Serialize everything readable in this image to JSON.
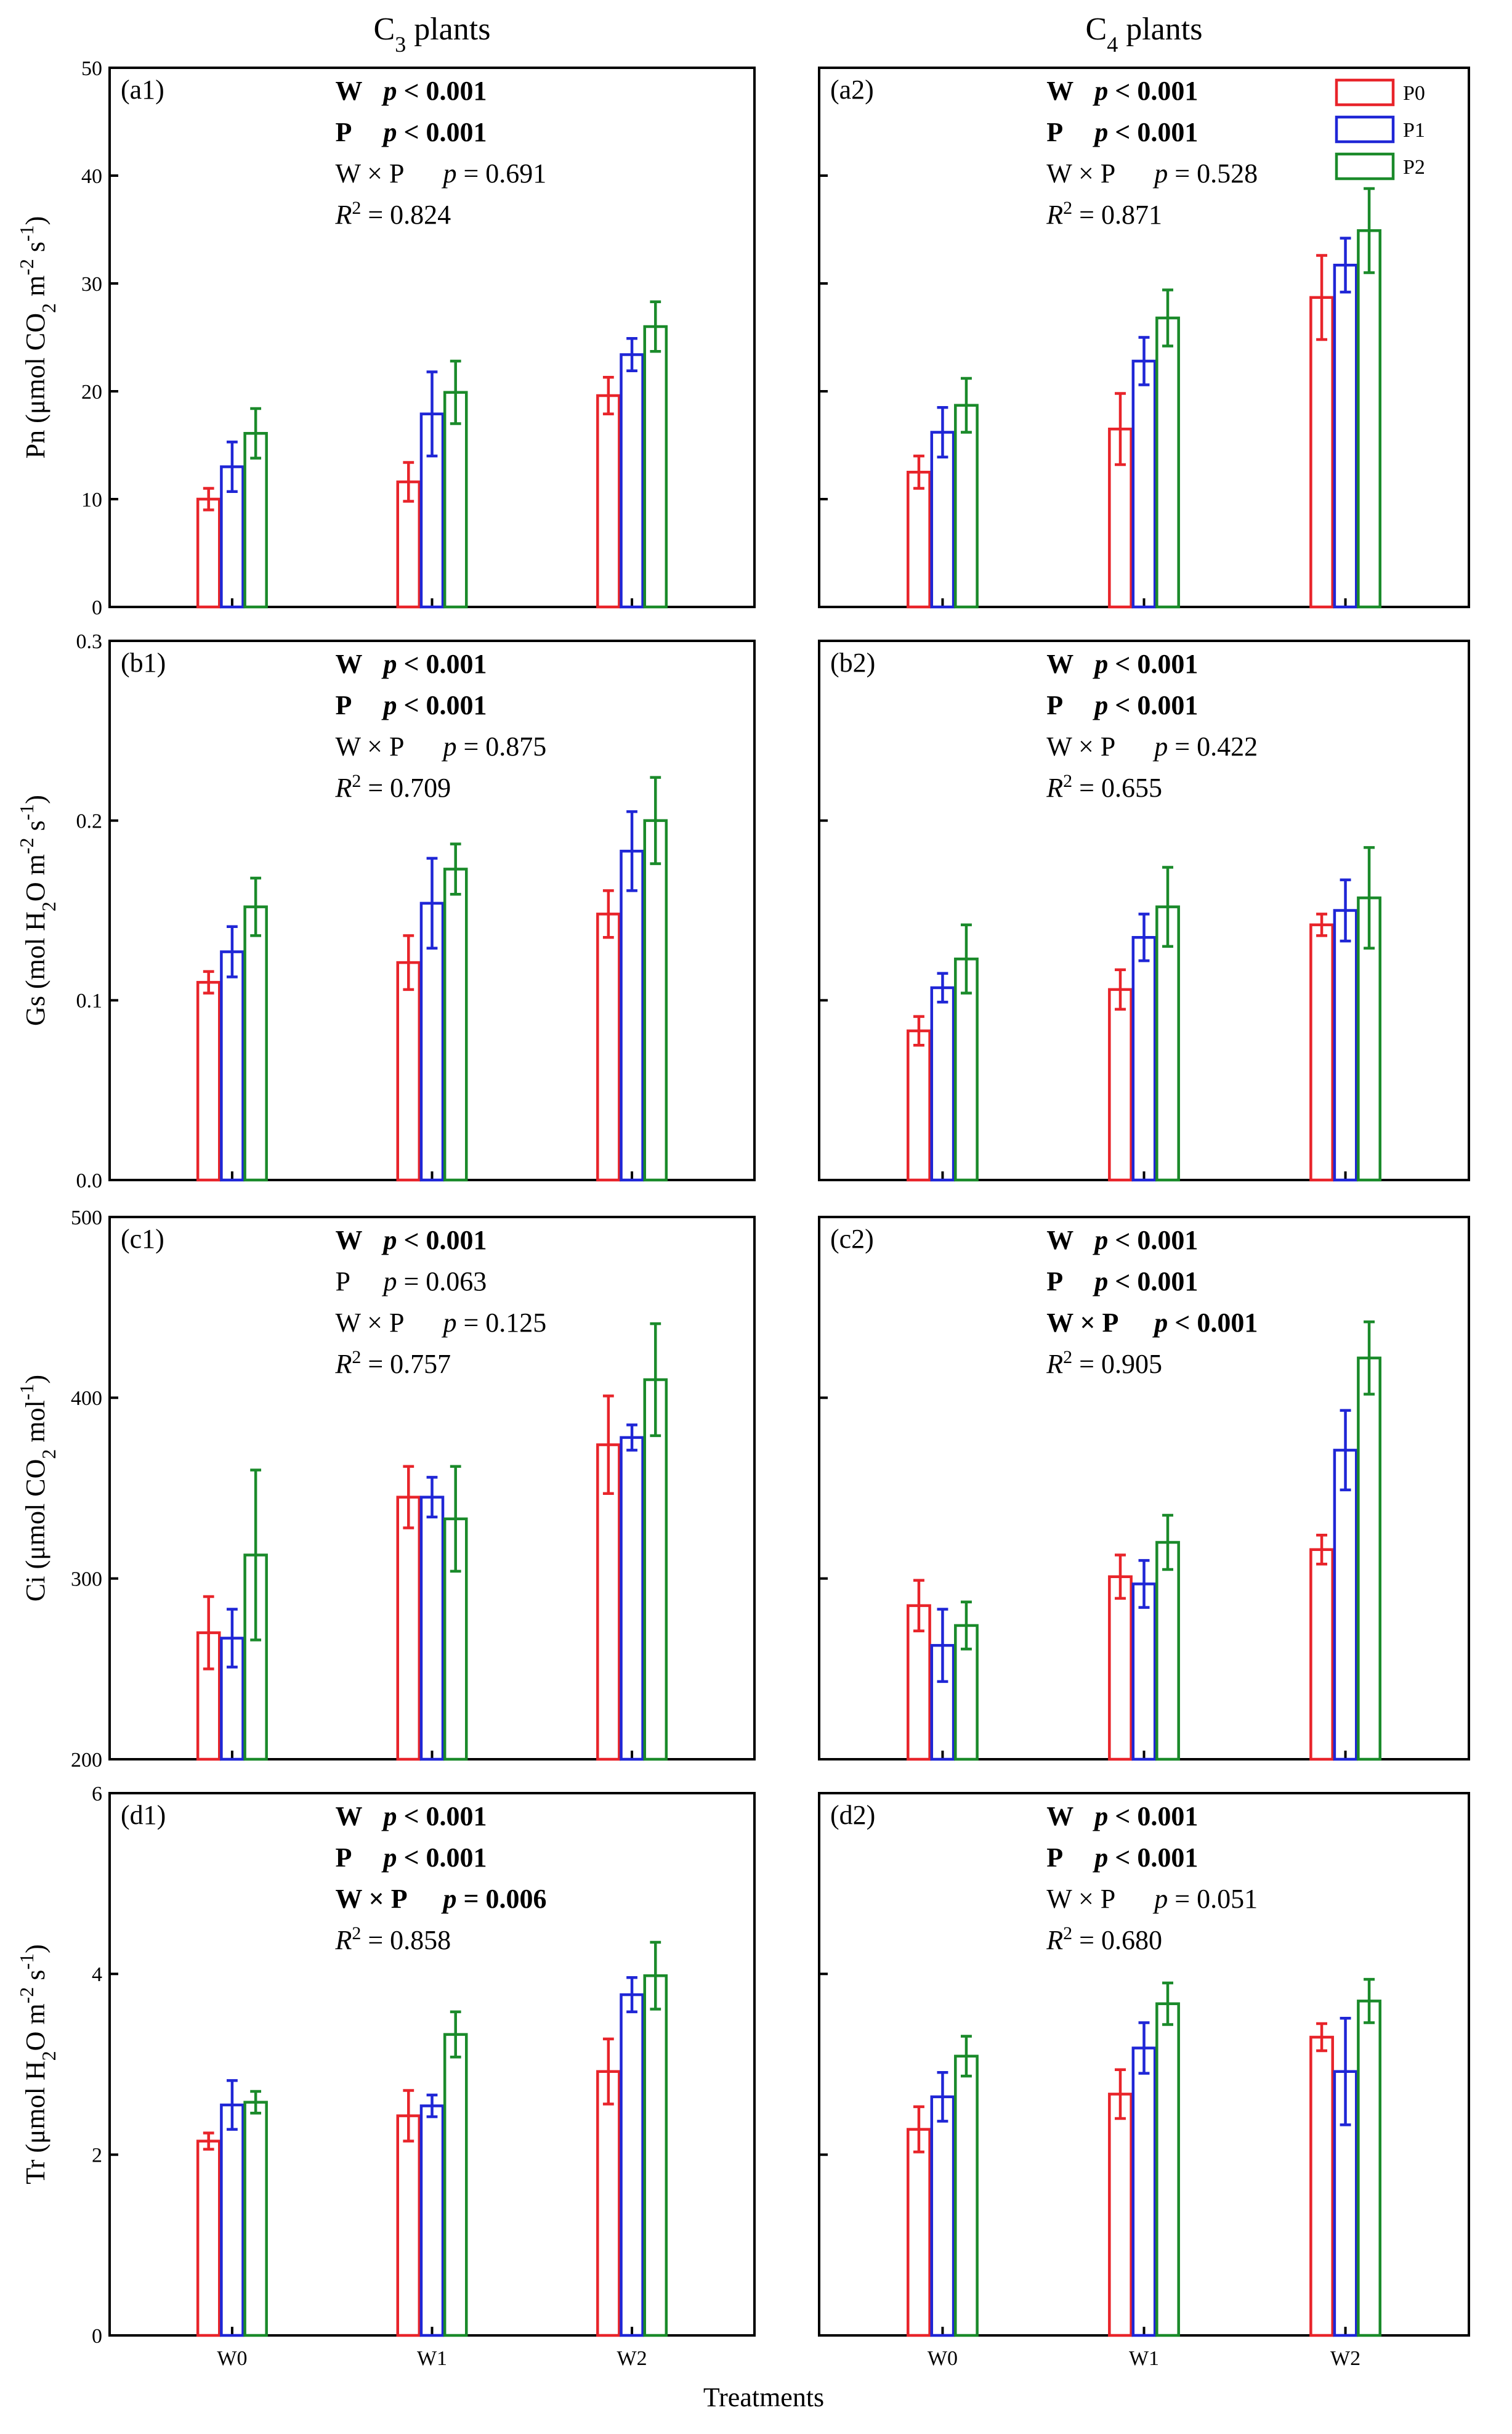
{
  "figure": {
    "col_titles": [
      "C3 plants",
      "C4 plants"
    ],
    "xlabel": "Treatments",
    "categories": [
      "W0",
      "W1",
      "W2"
    ],
    "legend": [
      {
        "name": "P0",
        "color": "#e8242a"
      },
      {
        "name": "P1",
        "color": "#1f26d6"
      },
      {
        "name": "P2",
        "color": "#1a8a2a"
      }
    ]
  },
  "chart_data": [
    {
      "type": "bar",
      "id": "a1",
      "panel_label": "(a1)",
      "row": 0,
      "col": 0,
      "ylabel": "Pn (μmol CO2 m-2 s-1)",
      "ylim": [
        0,
        50
      ],
      "yticks": [
        0,
        10,
        20,
        30,
        40,
        50
      ],
      "ytick_labels": [
        "0",
        "10",
        "20",
        "30",
        "40",
        "50"
      ],
      "categories": [
        "W0",
        "W1",
        "W2"
      ],
      "series": [
        {
          "name": "P0",
          "values": [
            10.0,
            11.6,
            19.6
          ],
          "errors": [
            1.0,
            1.8,
            1.7
          ]
        },
        {
          "name": "P1",
          "values": [
            13.0,
            17.9,
            23.4
          ],
          "errors": [
            2.3,
            3.9,
            1.5
          ]
        },
        {
          "name": "P2",
          "values": [
            16.1,
            19.9,
            26.0
          ],
          "errors": [
            2.3,
            2.9,
            2.3
          ]
        }
      ],
      "annotations": [
        {
          "label": "W",
          "stat": "p < 0.001",
          "bold": true
        },
        {
          "label": "P",
          "stat": "p < 0.001",
          "bold": true
        },
        {
          "label": "W × P",
          "stat": "p = 0.691",
          "bold": false
        },
        {
          "label": "R2",
          "stat": "= 0.824",
          "bold": false
        }
      ]
    },
    {
      "type": "bar",
      "id": "a2",
      "panel_label": "(a2)",
      "row": 0,
      "col": 1,
      "ylim": [
        0,
        50
      ],
      "yticks": [
        0,
        10,
        20,
        30,
        40,
        50
      ],
      "categories": [
        "W0",
        "W1",
        "W2"
      ],
      "series": [
        {
          "name": "P0",
          "values": [
            12.5,
            16.5,
            28.7
          ],
          "errors": [
            1.5,
            3.3,
            3.9
          ]
        },
        {
          "name": "P1",
          "values": [
            16.2,
            22.8,
            31.7
          ],
          "errors": [
            2.3,
            2.2,
            2.5
          ]
        },
        {
          "name": "P2",
          "values": [
            18.7,
            26.8,
            34.9
          ],
          "errors": [
            2.5,
            2.6,
            3.9
          ]
        }
      ],
      "annotations": [
        {
          "label": "W",
          "stat": "p < 0.001",
          "bold": true
        },
        {
          "label": "P",
          "stat": "p < 0.001",
          "bold": true
        },
        {
          "label": "W × P",
          "stat": "p = 0.528",
          "bold": false
        },
        {
          "label": "R2",
          "stat": "= 0.871",
          "bold": false
        }
      ],
      "show_legend": true
    },
    {
      "type": "bar",
      "id": "b1",
      "panel_label": "(b1)",
      "row": 1,
      "col": 0,
      "ylabel": "Gs (mol H2O m-2 s-1)",
      "ylim": [
        0,
        0.3
      ],
      "yticks": [
        0,
        0.1,
        0.2,
        0.3
      ],
      "ytick_labels": [
        "0.0",
        "0.1",
        "0.2",
        "0.3"
      ],
      "categories": [
        "W0",
        "W1",
        "W2"
      ],
      "series": [
        {
          "name": "P0",
          "values": [
            0.11,
            0.121,
            0.148
          ],
          "errors": [
            0.006,
            0.015,
            0.013
          ]
        },
        {
          "name": "P1",
          "values": [
            0.127,
            0.154,
            0.183
          ],
          "errors": [
            0.014,
            0.025,
            0.022
          ]
        },
        {
          "name": "P2",
          "values": [
            0.152,
            0.173,
            0.2
          ],
          "errors": [
            0.016,
            0.014,
            0.024
          ]
        }
      ],
      "annotations": [
        {
          "label": "W",
          "stat": "p < 0.001",
          "bold": true
        },
        {
          "label": "P",
          "stat": "p < 0.001",
          "bold": true
        },
        {
          "label": "W × P",
          "stat": "p = 0.875",
          "bold": false
        },
        {
          "label": "R2",
          "stat": "= 0.709",
          "bold": false
        }
      ]
    },
    {
      "type": "bar",
      "id": "b2",
      "panel_label": "(b2)",
      "row": 1,
      "col": 1,
      "ylim": [
        0,
        0.3
      ],
      "yticks": [
        0,
        0.1,
        0.2,
        0.3
      ],
      "categories": [
        "W0",
        "W1",
        "W2"
      ],
      "series": [
        {
          "name": "P0",
          "values": [
            0.083,
            0.106,
            0.142
          ],
          "errors": [
            0.008,
            0.011,
            0.006
          ]
        },
        {
          "name": "P1",
          "values": [
            0.107,
            0.135,
            0.15
          ],
          "errors": [
            0.008,
            0.013,
            0.017
          ]
        },
        {
          "name": "P2",
          "values": [
            0.123,
            0.152,
            0.157
          ],
          "errors": [
            0.019,
            0.022,
            0.028
          ]
        }
      ],
      "annotations": [
        {
          "label": "W",
          "stat": "p < 0.001",
          "bold": true
        },
        {
          "label": "P",
          "stat": "p < 0.001",
          "bold": true
        },
        {
          "label": "W × P",
          "stat": "p = 0.422",
          "bold": false
        },
        {
          "label": "R2",
          "stat": "= 0.655",
          "bold": false
        }
      ]
    },
    {
      "type": "bar",
      "id": "c1",
      "panel_label": "(c1)",
      "row": 2,
      "col": 0,
      "ylabel": "Ci (μmol CO2 mol-1)",
      "ylim": [
        200,
        500
      ],
      "yticks": [
        200,
        300,
        400,
        500
      ],
      "ytick_labels": [
        "200",
        "300",
        "400",
        "500"
      ],
      "categories": [
        "W0",
        "W1",
        "W2"
      ],
      "series": [
        {
          "name": "P0",
          "values": [
            270,
            345,
            374
          ],
          "errors": [
            20,
            17,
            27
          ]
        },
        {
          "name": "P1",
          "values": [
            267,
            345,
            378
          ],
          "errors": [
            16,
            11,
            7
          ]
        },
        {
          "name": "P2",
          "values": [
            313,
            333,
            410
          ],
          "errors": [
            47,
            29,
            31
          ]
        }
      ],
      "annotations": [
        {
          "label": "W",
          "stat": "p < 0.001",
          "bold": true
        },
        {
          "label": "P",
          "stat": "p = 0.063",
          "bold": false
        },
        {
          "label": "W × P",
          "stat": "p = 0.125",
          "bold": false
        },
        {
          "label": "R2",
          "stat": "= 0.757",
          "bold": false
        }
      ]
    },
    {
      "type": "bar",
      "id": "c2",
      "panel_label": "(c2)",
      "row": 2,
      "col": 1,
      "ylim": [
        200,
        500
      ],
      "yticks": [
        200,
        300,
        400,
        500
      ],
      "categories": [
        "W0",
        "W1",
        "W2"
      ],
      "series": [
        {
          "name": "P0",
          "values": [
            285,
            301,
            316
          ],
          "errors": [
            14,
            12,
            8
          ]
        },
        {
          "name": "P1",
          "values": [
            263,
            297,
            371
          ],
          "errors": [
            20,
            13,
            22
          ]
        },
        {
          "name": "P2",
          "values": [
            274,
            320,
            422
          ],
          "errors": [
            13,
            15,
            20
          ]
        }
      ],
      "annotations": [
        {
          "label": "W",
          "stat": "p < 0.001",
          "bold": true
        },
        {
          "label": "P",
          "stat": "p < 0.001",
          "bold": true
        },
        {
          "label": "W × P",
          "stat": "p < 0.001",
          "bold": true
        },
        {
          "label": "R2",
          "stat": "= 0.905",
          "bold": false
        }
      ]
    },
    {
      "type": "bar",
      "id": "d1",
      "panel_label": "(d1)",
      "row": 3,
      "col": 0,
      "ylabel": "Tr (μmol H2O m-2 s-1)",
      "ylim": [
        0,
        6
      ],
      "yticks": [
        0,
        2,
        4,
        6
      ],
      "ytick_labels": [
        "0",
        "2",
        "4",
        "6"
      ],
      "categories": [
        "W0",
        "W1",
        "W2"
      ],
      "series": [
        {
          "name": "P0",
          "values": [
            2.15,
            2.43,
            2.92
          ],
          "errors": [
            0.09,
            0.28,
            0.36
          ]
        },
        {
          "name": "P1",
          "values": [
            2.55,
            2.54,
            3.77
          ],
          "errors": [
            0.27,
            0.12,
            0.19
          ]
        },
        {
          "name": "P2",
          "values": [
            2.58,
            3.33,
            3.98
          ],
          "errors": [
            0.12,
            0.25,
            0.37
          ]
        }
      ],
      "annotations": [
        {
          "label": "W",
          "stat": "p < 0.001",
          "bold": true
        },
        {
          "label": "P",
          "stat": "p < 0.001",
          "bold": true
        },
        {
          "label": "W × P",
          "stat": "p = 0.006",
          "bold": true
        },
        {
          "label": "R2",
          "stat": "= 0.858",
          "bold": false
        }
      ]
    },
    {
      "type": "bar",
      "id": "d2",
      "panel_label": "(d2)",
      "row": 3,
      "col": 1,
      "ylim": [
        0,
        6
      ],
      "yticks": [
        0,
        2,
        4,
        6
      ],
      "categories": [
        "W0",
        "W1",
        "W2"
      ],
      "series": [
        {
          "name": "P0",
          "values": [
            2.28,
            2.67,
            3.3
          ],
          "errors": [
            0.25,
            0.27,
            0.15
          ]
        },
        {
          "name": "P1",
          "values": [
            2.64,
            3.18,
            2.92
          ],
          "errors": [
            0.27,
            0.28,
            0.59
          ]
        },
        {
          "name": "P2",
          "values": [
            3.09,
            3.67,
            3.7
          ],
          "errors": [
            0.22,
            0.23,
            0.24
          ]
        }
      ],
      "annotations": [
        {
          "label": "W",
          "stat": "p < 0.001",
          "bold": true
        },
        {
          "label": "P",
          "stat": "p < 0.001",
          "bold": true
        },
        {
          "label": "W × P",
          "stat": "p = 0.051",
          "bold": false
        },
        {
          "label": "R2",
          "stat": "= 0.680",
          "bold": false
        }
      ]
    }
  ]
}
